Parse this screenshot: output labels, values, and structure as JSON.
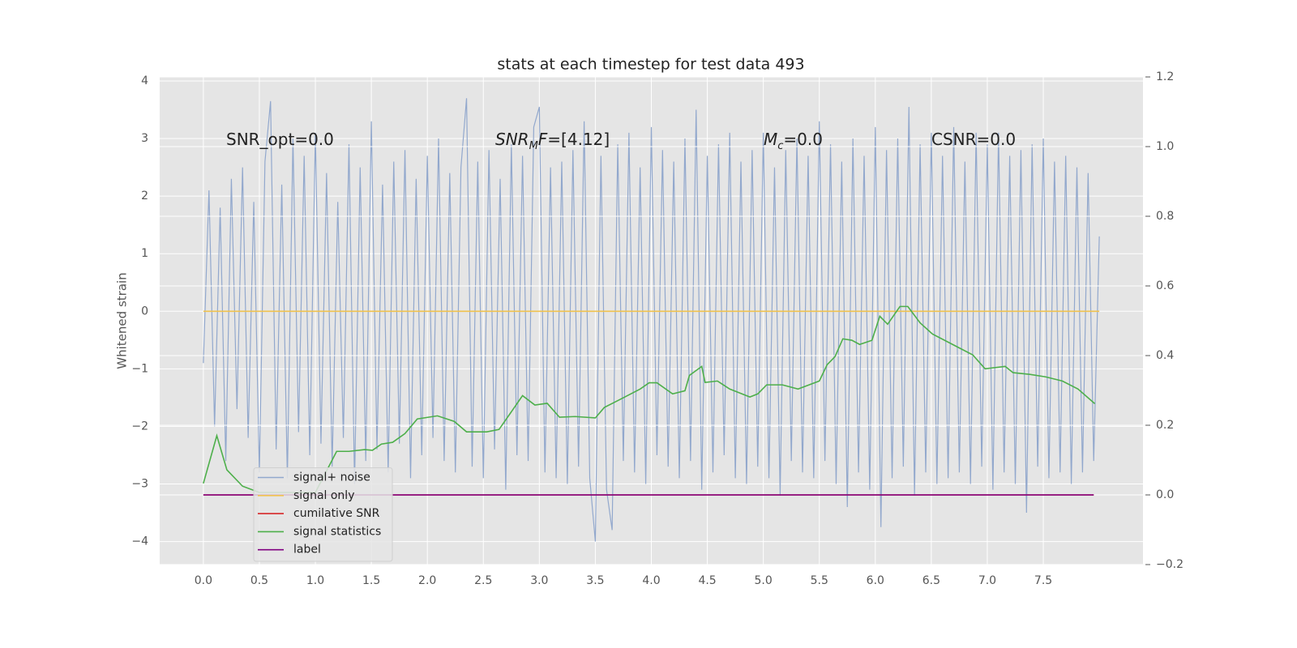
{
  "chart_data": {
    "type": "line",
    "title": "stats at each timestep for test data 493",
    "ylabel": "Whitened strain",
    "grid": true,
    "background": "#e5e5e5",
    "legend": "lower left",
    "xlim": [
      -0.39,
      8.39
    ],
    "ylim": [
      -4.4,
      4.07
    ],
    "y2lim": [
      -0.2,
      1.2
    ],
    "xticks": [
      {
        "value": 0,
        "label": "0.0"
      },
      0.5,
      {
        "value": 1,
        "label": "1.0"
      },
      1.5,
      {
        "value": 2,
        "label": "2.0"
      },
      2.5,
      {
        "value": 3,
        "label": "3.0"
      },
      3.5,
      {
        "value": 4,
        "label": "4.0"
      },
      4.5,
      {
        "value": 5,
        "label": "5.0"
      },
      5.5,
      {
        "value": 6,
        "label": "6.0"
      },
      6.5,
      {
        "value": 7,
        "label": "7.0"
      },
      7.5
    ],
    "yticks": [
      {
        "value": -4,
        "label": "−4"
      },
      {
        "value": -3,
        "label": "−3"
      },
      {
        "value": -2,
        "label": "−2"
      },
      {
        "value": -1,
        "label": "−1"
      },
      0,
      1,
      2,
      3,
      4
    ],
    "y2ticks": [
      {
        "value": -0.2,
        "label": "−0.2"
      },
      {
        "value": 0,
        "label": "0.0"
      },
      0.2,
      0.4,
      0.6,
      0.8,
      {
        "value": 1,
        "label": "1.0"
      },
      1.2
    ],
    "annotations": [
      {
        "parts": [
          {
            "text": "SNR_opt=0.0"
          }
        ]
      },
      {
        "parts": [
          {
            "text": "SNR",
            "italic": true
          },
          {
            "text": "M",
            "italic": true,
            "sub": true
          },
          {
            "text": "F",
            "italic": true
          },
          {
            "text": "=[4.12]"
          }
        ]
      },
      {
        "parts": [
          {
            "text": "M",
            "italic": true
          },
          {
            "text": "c",
            "italic": true,
            "sub": true
          },
          {
            "text": "=0.0"
          }
        ]
      },
      {
        "parts": [
          {
            "text": "CSNR=0.0"
          }
        ]
      }
    ],
    "series": [
      {
        "name": "signal+ noise",
        "color": "#92a8cd",
        "axis": "y",
        "x": [
          0,
          0.05,
          0.1,
          0.15,
          0.2,
          0.25,
          0.3,
          0.35,
          0.4,
          0.45,
          0.5,
          0.55,
          0.6,
          0.65,
          0.7,
          0.75,
          0.8,
          0.85,
          0.9,
          0.95,
          1,
          1.05,
          1.1,
          1.15,
          1.2,
          1.25,
          1.3,
          1.35,
          1.4,
          1.45,
          1.5,
          1.55,
          1.6,
          1.65,
          1.7,
          1.75,
          1.8,
          1.85,
          1.9,
          1.95,
          2,
          2.05,
          2.1,
          2.15,
          2.2,
          2.25,
          2.3,
          2.35,
          2.4,
          2.45,
          2.5,
          2.55,
          2.6,
          2.65,
          2.7,
          2.75,
          2.8,
          2.85,
          2.9,
          2.95,
          3,
          3.05,
          3.1,
          3.15,
          3.2,
          3.25,
          3.3,
          3.35,
          3.4,
          3.45,
          3.5,
          3.55,
          3.6,
          3.65,
          3.7,
          3.75,
          3.8,
          3.85,
          3.9,
          3.95,
          4,
          4.05,
          4.1,
          4.15,
          4.2,
          4.25,
          4.3,
          4.35,
          4.4,
          4.45,
          4.5,
          4.55,
          4.6,
          4.65,
          4.7,
          4.75,
          4.8,
          4.85,
          4.9,
          4.95,
          5,
          5.05,
          5.1,
          5.15,
          5.2,
          5.25,
          5.3,
          5.35,
          5.4,
          5.45,
          5.5,
          5.55,
          5.6,
          5.65,
          5.7,
          5.75,
          5.8,
          5.85,
          5.9,
          5.95,
          6,
          6.05,
          6.1,
          6.15,
          6.2,
          6.25,
          6.3,
          6.35,
          6.4,
          6.45,
          6.5,
          6.55,
          6.6,
          6.65,
          6.7,
          6.75,
          6.8,
          6.85,
          6.9,
          6.95,
          7,
          7.05,
          7.1,
          7.15,
          7.2,
          7.25,
          7.3,
          7.35,
          7.4,
          7.45,
          7.5,
          7.55,
          7.6,
          7.65,
          7.7,
          7.75,
          7.8,
          7.85,
          7.9,
          7.95,
          8
        ],
        "values": [
          -0.9,
          2.1,
          -2.0,
          1.8,
          -2.6,
          2.3,
          -1.7,
          2.5,
          -2.2,
          1.9,
          -2.8,
          2.6,
          3.65,
          -2.4,
          2.2,
          -2.9,
          3.0,
          -2.1,
          2.7,
          -2.5,
          3.1,
          -2.3,
          2.4,
          -2.7,
          1.9,
          -2.2,
          2.9,
          -3.0,
          2.5,
          -2.6,
          3.3,
          -2.4,
          2.2,
          -2.8,
          2.6,
          -2.3,
          2.8,
          -2.9,
          2.3,
          -2.5,
          2.7,
          -2.2,
          3.0,
          -2.6,
          2.4,
          -2.8,
          2.5,
          3.7,
          -2.7,
          2.6,
          -2.9,
          2.8,
          -2.4,
          2.3,
          -3.1,
          2.9,
          -2.5,
          2.7,
          -2.6,
          3.2,
          3.55,
          -2.8,
          2.5,
          -2.9,
          2.6,
          -3.0,
          2.8,
          -2.7,
          3.3,
          -2.9,
          -4.0,
          2.7,
          -3.1,
          -3.8,
          2.9,
          -2.6,
          3.1,
          -2.8,
          2.5,
          -3.0,
          3.2,
          -2.5,
          2.8,
          -2.7,
          2.6,
          -2.9,
          3.0,
          -2.6,
          3.5,
          -3.1,
          2.7,
          -2.8,
          2.9,
          -2.5,
          3.1,
          -2.9,
          2.6,
          -3.0,
          2.8,
          -2.7,
          3.1,
          -2.9,
          2.5,
          -3.2,
          2.8,
          -2.6,
          3.0,
          -2.8,
          2.7,
          -2.9,
          3.3,
          -2.6,
          2.9,
          -3.0,
          2.6,
          -3.4,
          3.0,
          -2.8,
          2.7,
          -3.1,
          3.2,
          -3.75,
          2.8,
          -2.9,
          3.0,
          -2.7,
          3.55,
          -3.2,
          2.9,
          -2.8,
          3.1,
          -3.0,
          2.7,
          -2.9,
          3.2,
          -2.8,
          2.6,
          -3.0,
          3.1,
          -2.7,
          2.9,
          -3.1,
          3.1,
          -2.8,
          2.7,
          -3.0,
          2.8,
          -3.5,
          2.9,
          -2.7,
          3.0,
          -2.9,
          2.6,
          -2.8,
          2.7,
          -3.0,
          2.5,
          -2.8,
          2.4,
          -2.6,
          1.3
        ]
      },
      {
        "name": "signal only",
        "color": "#f0c24f",
        "axis": "y",
        "x": [
          0,
          8
        ],
        "values": [
          0,
          0
        ]
      },
      {
        "name": "cumilative SNR",
        "color": "#d62728",
        "axis": "y2",
        "x": [
          0,
          7.95
        ],
        "values": [
          0,
          0
        ]
      },
      {
        "name": "signal statistics",
        "color": "#4daf4a",
        "axis": "y2",
        "x": [
          0,
          0.12,
          0.21,
          0.35,
          0.5,
          1.0,
          1.15,
          1.19,
          1.3,
          1.44,
          1.51,
          1.59,
          1.69,
          1.8,
          1.91,
          2.09,
          2.24,
          2.35,
          2.53,
          2.64,
          2.74,
          2.85,
          2.96,
          3.07,
          3.18,
          3.32,
          3.5,
          3.58,
          3.72,
          3.9,
          3.98,
          4.05,
          4.19,
          4.3,
          4.34,
          4.45,
          4.48,
          4.59,
          4.7,
          4.88,
          4.95,
          5.03,
          5.17,
          5.31,
          5.5,
          5.57,
          5.64,
          5.71,
          5.79,
          5.86,
          5.97,
          6.04,
          6.11,
          6.22,
          6.29,
          6.4,
          6.51,
          6.69,
          6.87,
          6.98,
          7.16,
          7.23,
          7.38,
          7.52,
          7.67,
          7.81,
          7.96
        ],
        "values": [
          0.033,
          0.17,
          0.072,
          0.025,
          0.007,
          0.007,
          0.1,
          0.125,
          0.125,
          0.13,
          0.128,
          0.146,
          0.151,
          0.176,
          0.218,
          0.227,
          0.211,
          0.181,
          0.181,
          0.188,
          0.234,
          0.285,
          0.258,
          0.263,
          0.223,
          0.225,
          0.221,
          0.251,
          0.274,
          0.304,
          0.322,
          0.322,
          0.29,
          0.299,
          0.343,
          0.369,
          0.323,
          0.327,
          0.304,
          0.281,
          0.29,
          0.316,
          0.316,
          0.304,
          0.327,
          0.374,
          0.397,
          0.448,
          0.444,
          0.432,
          0.444,
          0.513,
          0.49,
          0.541,
          0.541,
          0.494,
          0.462,
          0.432,
          0.402,
          0.362,
          0.369,
          0.351,
          0.346,
          0.339,
          0.327,
          0.304,
          0.262
        ]
      },
      {
        "name": "label",
        "color": "#800080",
        "axis": "y2",
        "x": [
          0,
          7.95
        ],
        "values": [
          0,
          0
        ]
      }
    ]
  }
}
